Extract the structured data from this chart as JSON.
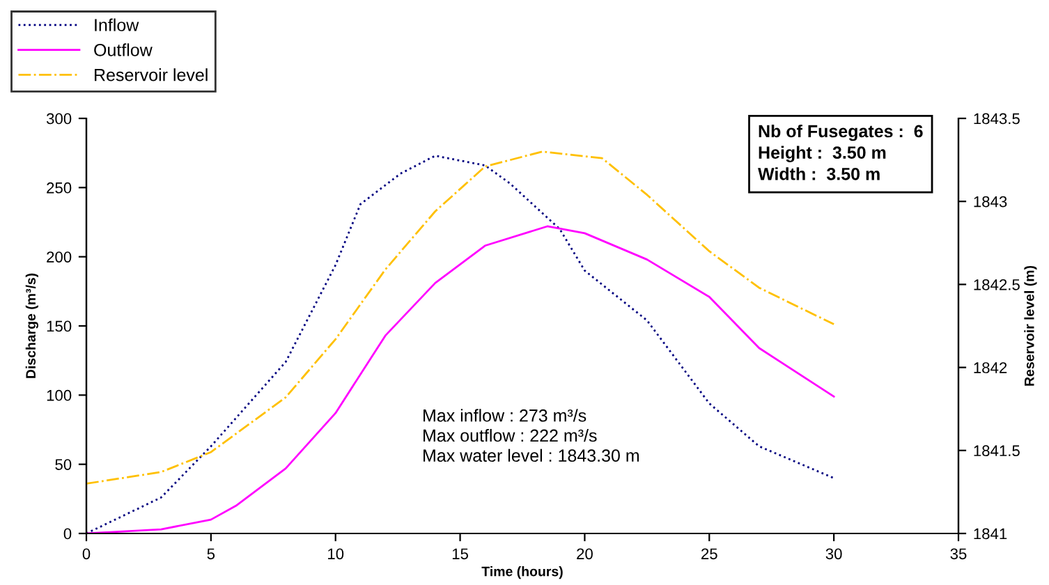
{
  "chart_data": {
    "type": "line",
    "xlabel": "Time (hours)",
    "ylabel": "Discharge (m³/s)",
    "y2label": "Reservoir level (m)",
    "xlim": [
      0,
      35
    ],
    "xticks": [
      0,
      5,
      10,
      15,
      20,
      25,
      30,
      35
    ],
    "ylim": [
      0,
      300
    ],
    "yticks": [
      0,
      50,
      100,
      150,
      200,
      250,
      300
    ],
    "y2lim": [
      1841,
      1843.5
    ],
    "y2ticks": [
      1841,
      1841.5,
      1842,
      1842.5,
      1843,
      1843.5
    ],
    "legend": "top left",
    "grid": false,
    "marker": "none",
    "series": [
      {
        "name": "Inflow",
        "color": "#000080",
        "line_style": "dotted",
        "x": [
          0,
          3,
          5,
          8,
          10,
          11,
          12.6,
          14,
          16,
          17,
          19,
          20,
          22.5,
          25,
          27,
          30
        ],
        "values": [
          0,
          26,
          63,
          124,
          194,
          238,
          260,
          273,
          266,
          253,
          220,
          190,
          154,
          94,
          63,
          40
        ]
      },
      {
        "name": "Outflow",
        "color": "#ff00ff",
        "line_style": "solid",
        "x": [
          0,
          3,
          5,
          6,
          8,
          10,
          12,
          14,
          16,
          18.5,
          20,
          22.5,
          25,
          27,
          30
        ],
        "values": [
          0,
          3,
          10,
          20,
          47,
          87,
          143,
          181,
          208,
          222,
          217,
          198,
          171,
          134,
          99
        ]
      },
      {
        "name": "Reservoir level",
        "color": "#ffc000",
        "line_style": "dashdot",
        "axis": "y2",
        "x": [
          0,
          3,
          5,
          8,
          10,
          12,
          14,
          16,
          18.3,
          20.7,
          22.5,
          25,
          27,
          30
        ],
        "values": [
          1841.3,
          1841.37,
          1841.49,
          1841.82,
          1842.17,
          1842.59,
          1842.94,
          1843.21,
          1843.3,
          1843.26,
          1843.04,
          1842.7,
          1842.48,
          1842.26
        ]
      }
    ],
    "annotations": [
      "Nb of Fusegates :  6\nHeight :  3.50 m\nWidth :  3.50 m",
      "Max inflow : 273 m³/s\nMax outflow : 222 m³/s\nMax water level : 1843.30 m"
    ]
  }
}
